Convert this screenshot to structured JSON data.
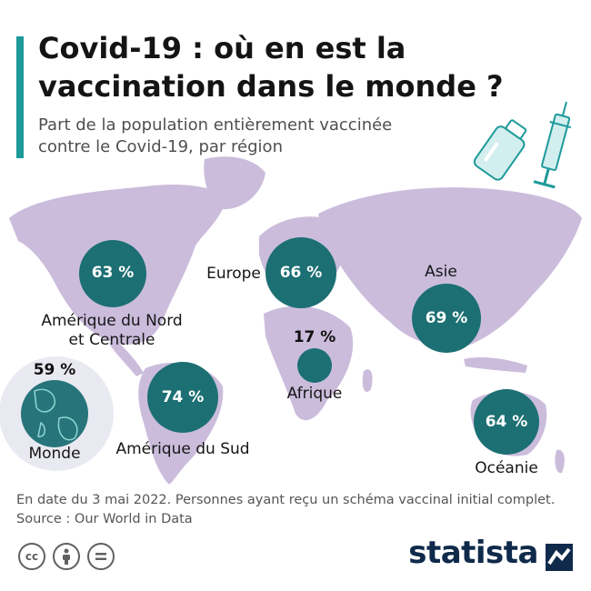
{
  "header": {
    "title_line1": "Covid-19 : où en est la",
    "title_line2": "vaccination dans le monde ?",
    "subtitle_line1": "Part de la population entièrement vaccinée",
    "subtitle_line2": "contre le Covid-19, par région"
  },
  "regions": {
    "na": {
      "label_line1": "Amérique du Nord",
      "label_line2": "et Centrale",
      "value": "63 %"
    },
    "eu": {
      "label": "Europe",
      "value": "66 %"
    },
    "as": {
      "label": "Asie",
      "value": "69 %"
    },
    "af": {
      "label": "Afrique",
      "value": "17 %"
    },
    "sa": {
      "label": "Amérique du Sud",
      "value": "74 %"
    },
    "oc": {
      "label": "Océanie",
      "value": "64 %"
    },
    "world": {
      "label": "Monde",
      "value": "59 %"
    }
  },
  "footer": {
    "note": "En date du 3 mai 2022. Personnes ayant reçu un schéma vaccinal initial complet.",
    "source": "Source : Our World in Data",
    "brand": "statista",
    "license_icons": [
      "cc-icon",
      "person-icon",
      "equals-icon"
    ]
  },
  "colors": {
    "accent": "#1e9a9a",
    "circle": "#1c6f73",
    "land": "#cbbcdc"
  }
}
